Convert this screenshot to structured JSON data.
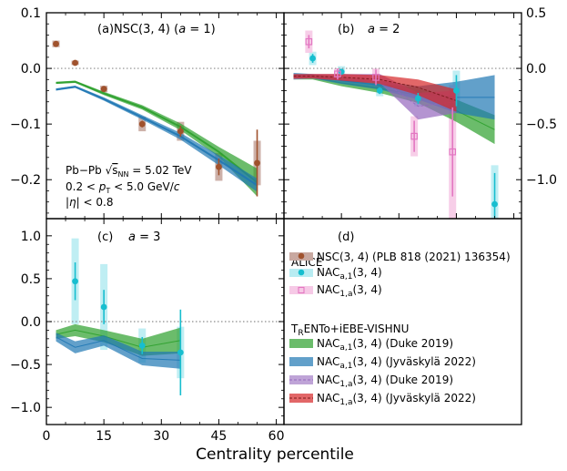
{
  "figure": {
    "xlabel": "Centrality percentile",
    "x_ticks": [
      "0",
      "15",
      "30",
      "45",
      "60"
    ]
  },
  "colors": {
    "alice_nsc": "#a0522d",
    "alice_nsc_band": "#c8a8a0",
    "alice_nac_a1": "#17becf",
    "alice_nac_a1_band": "#b8ecf2",
    "alice_nac_1a": "#e377c2",
    "alice_nac_1a_band": "#f6c9e6",
    "duke_a1": "#2ca02c",
    "jyv_a1": "#1f77b4",
    "duke_1a": "#9467bd",
    "jyv_1a": "#d62728",
    "zero_line": "#8c8c8c"
  },
  "legend": {
    "header": "ALICE",
    "nsc": "NSC(3, 4) (PLB 818 (2021) 136354)",
    "nac_a1": "NAC_{a,1}(3, 4)",
    "nac_1a": "NAC_{1,a}(3, 4)",
    "model_header": "T_{R}ENTo+iEBE-VISHNU",
    "duke_a1": "NAC_{a,1}(3, 4) (Duke 2019)",
    "jyv_a1": "NAC_{a,1}(3, 4) (Jyväskylä 2022)",
    "duke_1a": "NAC_{1,a}(3, 4) (Duke 2019)",
    "jyv_1a": "NAC_{1,a}(3, 4) (Jyväskylä 2022)"
  },
  "chart_data": [
    {
      "panel": "a",
      "type": "scatter+band",
      "panel_label": "(a)",
      "title": "NSC(3, 4) (a = 1)",
      "annotations": [
        "Pb−Pb √s_NN = 5.02 TeV",
        "0.2 < p_T < 5.0 GeV/c",
        "|η| < 0.8"
      ],
      "xlim": [
        0,
        62
      ],
      "ylim": [
        -0.27,
        0.1
      ],
      "y_ticks": [
        "0.1",
        "0.0",
        "−0.1",
        "−0.2"
      ],
      "y_tick_values": [
        0.1,
        0.0,
        -0.1,
        -0.2
      ],
      "y_axis": "left",
      "series": [
        {
          "name": "NSC(3, 4) ALICE",
          "kind": "points",
          "marker": "circle",
          "color_key": "alice_nsc",
          "band_key": "alice_nsc_band",
          "x": [
            2.5,
            7.5,
            15,
            25,
            35,
            45,
            55
          ],
          "y": [
            0.044,
            0.01,
            -0.037,
            -0.1,
            -0.113,
            -0.177,
            -0.17
          ],
          "stat": [
            0.004,
            0.003,
            0.004,
            0.006,
            0.01,
            0.015,
            0.06
          ],
          "syst": [
            0.006,
            0.004,
            0.006,
            0.013,
            0.017,
            0.025,
            0.04
          ]
        },
        {
          "name": "Duke 2019",
          "kind": "band",
          "color_key": "duke_a1",
          "x": [
            2.5,
            7.5,
            15,
            25,
            35,
            45,
            55
          ],
          "y": [
            -0.026,
            -0.024,
            -0.045,
            -0.07,
            -0.105,
            -0.15,
            -0.205
          ],
          "err": [
            0.002,
            0.002,
            0.003,
            0.004,
            0.006,
            0.009,
            0.025
          ]
        },
        {
          "name": "Jyväskylä 2022",
          "kind": "band",
          "color_key": "jyv_a1",
          "x": [
            2.5,
            7.5,
            15,
            25,
            35,
            45,
            55
          ],
          "y": [
            -0.038,
            -0.033,
            -0.055,
            -0.088,
            -0.122,
            -0.165,
            -0.21
          ],
          "err": [
            0.002,
            0.002,
            0.003,
            0.004,
            0.006,
            0.009,
            0.012
          ]
        }
      ]
    },
    {
      "panel": "b",
      "type": "scatter+band",
      "panel_label": "(b)",
      "title": "a = 2",
      "xlim": [
        0,
        62
      ],
      "ylim": [
        -1.35,
        0.5
      ],
      "y_ticks": [
        "0.5",
        "0.0",
        "−0.5",
        "−1.0"
      ],
      "y_tick_values": [
        0.5,
        0.0,
        -0.5,
        -1.0
      ],
      "y_axis": "right",
      "series": [
        {
          "name": "NAC_{a,1}(3, 4) ALICE",
          "kind": "points",
          "marker": "circle",
          "color_key": "alice_nac_a1",
          "band_key": "alice_nac_a1_band",
          "x": [
            7.5,
            15,
            25,
            35,
            45,
            55
          ],
          "y": [
            0.09,
            -0.03,
            -0.2,
            -0.27,
            -0.2,
            -1.22
          ],
          "stat": [
            0.04,
            0.02,
            0.03,
            0.05,
            0.14,
            0.28
          ],
          "syst": [
            0.06,
            0.05,
            0.05,
            0.07,
            0.18,
            0.35
          ]
        },
        {
          "name": "NAC_{1,a}(3, 4) ALICE",
          "kind": "points",
          "marker": "square-open",
          "color_key": "alice_nac_1a",
          "band_key": "alice_nac_1a_band",
          "x": [
            6.5,
            14,
            24,
            34,
            44
          ],
          "y": [
            0.24,
            -0.05,
            -0.08,
            -0.61,
            -0.75
          ],
          "stat": [
            0.06,
            0.05,
            0.07,
            0.14,
            0.4
          ],
          "syst": [
            0.1,
            0.05,
            0.08,
            0.18,
            0.6
          ]
        },
        {
          "name": "Duke 2019 a,1",
          "kind": "band",
          "color_key": "duke_a1",
          "x": [
            2.5,
            7.5,
            15,
            25,
            35,
            45,
            55
          ],
          "y": [
            -0.08,
            -0.08,
            -0.13,
            -0.18,
            -0.24,
            -0.38,
            -0.55
          ],
          "err": [
            0.02,
            0.02,
            0.03,
            0.04,
            0.07,
            0.1,
            0.13
          ]
        },
        {
          "name": "Jyväskylä 2022 a,1",
          "kind": "band",
          "color_key": "jyv_a1",
          "x": [
            2.5,
            7.5,
            15,
            25,
            35,
            45,
            55
          ],
          "y": [
            -0.06,
            -0.07,
            -0.11,
            -0.15,
            -0.22,
            -0.26,
            -0.26
          ],
          "err": [
            0.02,
            0.02,
            0.03,
            0.04,
            0.06,
            0.14,
            0.2
          ]
        },
        {
          "name": "Duke 2019 1,a",
          "kind": "band",
          "color_key": "duke_1a",
          "x": [
            2.5,
            7.5,
            15,
            25,
            35,
            45
          ],
          "y": [
            -0.08,
            -0.07,
            -0.08,
            -0.09,
            -0.34,
            -0.3
          ],
          "err": [
            0.02,
            0.02,
            0.03,
            0.04,
            0.12,
            0.1
          ]
        },
        {
          "name": "Jyväskylä 2022 1,a",
          "kind": "band",
          "color_key": "jyv_1a",
          "x": [
            2.5,
            7.5,
            15,
            25,
            35,
            45
          ],
          "y": [
            -0.07,
            -0.07,
            -0.08,
            -0.1,
            -0.17,
            -0.29
          ],
          "err": [
            0.02,
            0.02,
            0.03,
            0.04,
            0.07,
            0.1
          ]
        }
      ]
    },
    {
      "panel": "c",
      "type": "scatter+band",
      "panel_label": "(c)",
      "title": "a = 3",
      "xlim": [
        0,
        62
      ],
      "ylim": [
        -1.2,
        1.2
      ],
      "y_ticks": [
        "1.0",
        "0.5",
        "0.0",
        "−0.5",
        "−1.0"
      ],
      "y_tick_values": [
        1.0,
        0.5,
        0.0,
        -0.5,
        -1.0
      ],
      "y_axis": "left",
      "series": [
        {
          "name": "NAC_{a,1}(3, 4) ALICE",
          "kind": "points",
          "marker": "circle",
          "color_key": "alice_nac_a1",
          "band_key": "alice_nac_a1_band",
          "x": [
            7.5,
            15,
            25,
            35
          ],
          "y": [
            0.47,
            0.17,
            -0.28,
            -0.36
          ],
          "stat": [
            0.22,
            0.2,
            0.1,
            0.5
          ],
          "syst": [
            0.5,
            0.5,
            0.2,
            0.3
          ]
        },
        {
          "name": "Duke 2019",
          "kind": "band",
          "color_key": "duke_a1",
          "x": [
            2.5,
            7.5,
            15,
            25,
            35
          ],
          "y": [
            -0.15,
            -0.1,
            -0.17,
            -0.3,
            -0.22
          ],
          "err": [
            0.05,
            0.07,
            0.07,
            0.1,
            0.15
          ]
        },
        {
          "name": "Jyväskylä 2022",
          "kind": "band",
          "color_key": "jyv_a1",
          "x": [
            2.5,
            7.5,
            15,
            25,
            35
          ],
          "y": [
            -0.18,
            -0.3,
            -0.22,
            -0.43,
            -0.45
          ],
          "err": [
            0.05,
            0.07,
            0.06,
            0.08,
            0.1
          ]
        }
      ]
    },
    {
      "panel": "d",
      "type": "legend",
      "panel_label": "(d)"
    }
  ]
}
